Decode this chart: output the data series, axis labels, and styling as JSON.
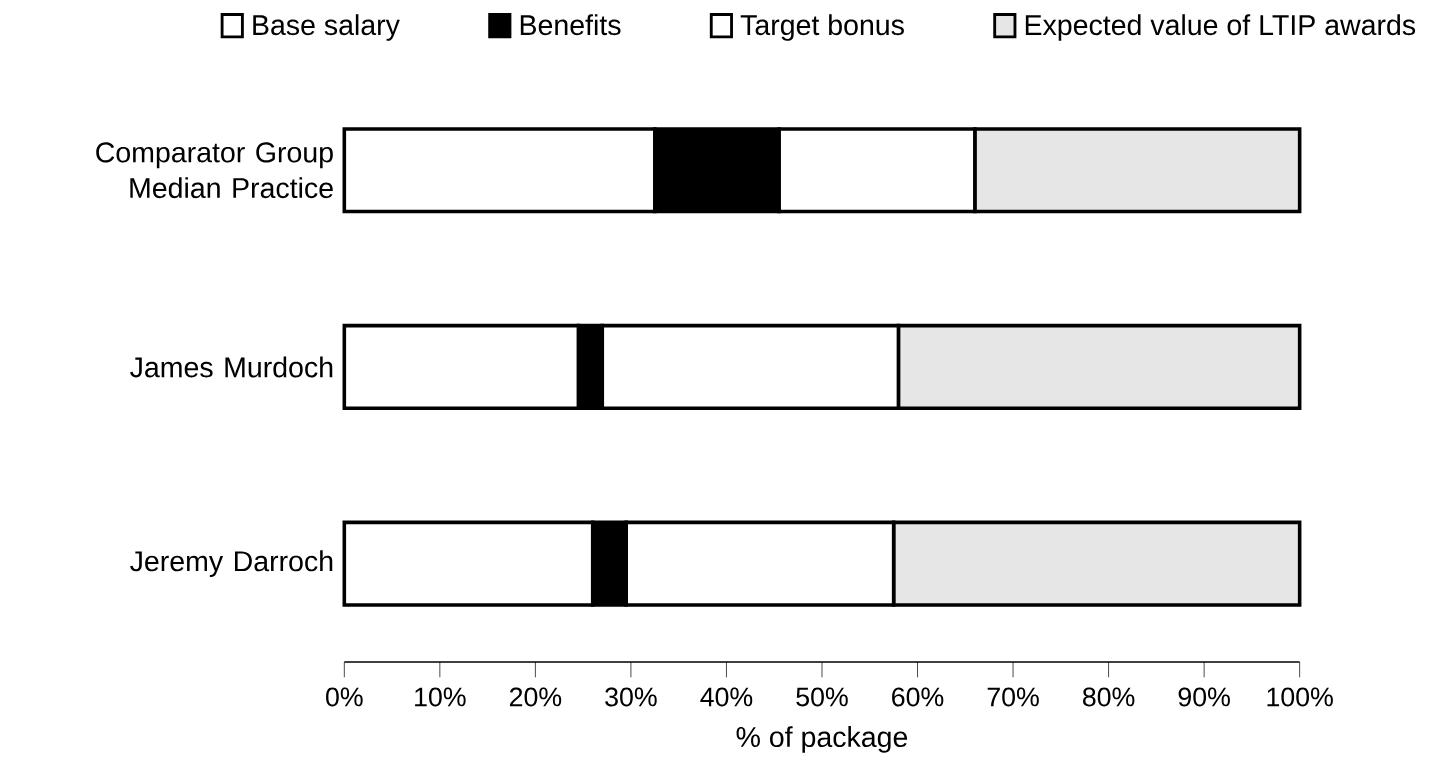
{
  "chart_data": {
    "type": "bar",
    "orientation": "horizontal",
    "stacked": true,
    "categories": [
      "Comparator Group Median Practice",
      "James Murdoch",
      "Jeremy Darroch"
    ],
    "series": [
      {
        "name": "Base salary",
        "color": "#ffffff",
        "values": [
          32.5,
          24.5,
          26
        ]
      },
      {
        "name": "Benefits",
        "color": "#000000",
        "values": [
          13,
          2.5,
          3.5
        ]
      },
      {
        "name": "Target bonus",
        "color": "#ffffff",
        "values": [
          20.5,
          31,
          28
        ]
      },
      {
        "name": "Expected value of LTIP awards",
        "color": "#e6e6e6",
        "values": [
          34,
          42,
          42.5
        ]
      }
    ],
    "xlabel": "% of package",
    "xlim": [
      0,
      100
    ],
    "xticks": [
      {
        "value": 0,
        "label": "0%"
      },
      {
        "value": 10,
        "label": "10%"
      },
      {
        "value": 20,
        "label": "20%"
      },
      {
        "value": 30,
        "label": "30%"
      },
      {
        "value": 40,
        "label": "40%"
      },
      {
        "value": 50,
        "label": "50%"
      },
      {
        "value": 60,
        "label": "60%"
      },
      {
        "value": 70,
        "label": "70%"
      },
      {
        "value": 80,
        "label": "80%"
      },
      {
        "value": 90,
        "label": "90%"
      },
      {
        "value": 100,
        "label": "100%"
      }
    ],
    "legend": "top",
    "grid": false
  }
}
